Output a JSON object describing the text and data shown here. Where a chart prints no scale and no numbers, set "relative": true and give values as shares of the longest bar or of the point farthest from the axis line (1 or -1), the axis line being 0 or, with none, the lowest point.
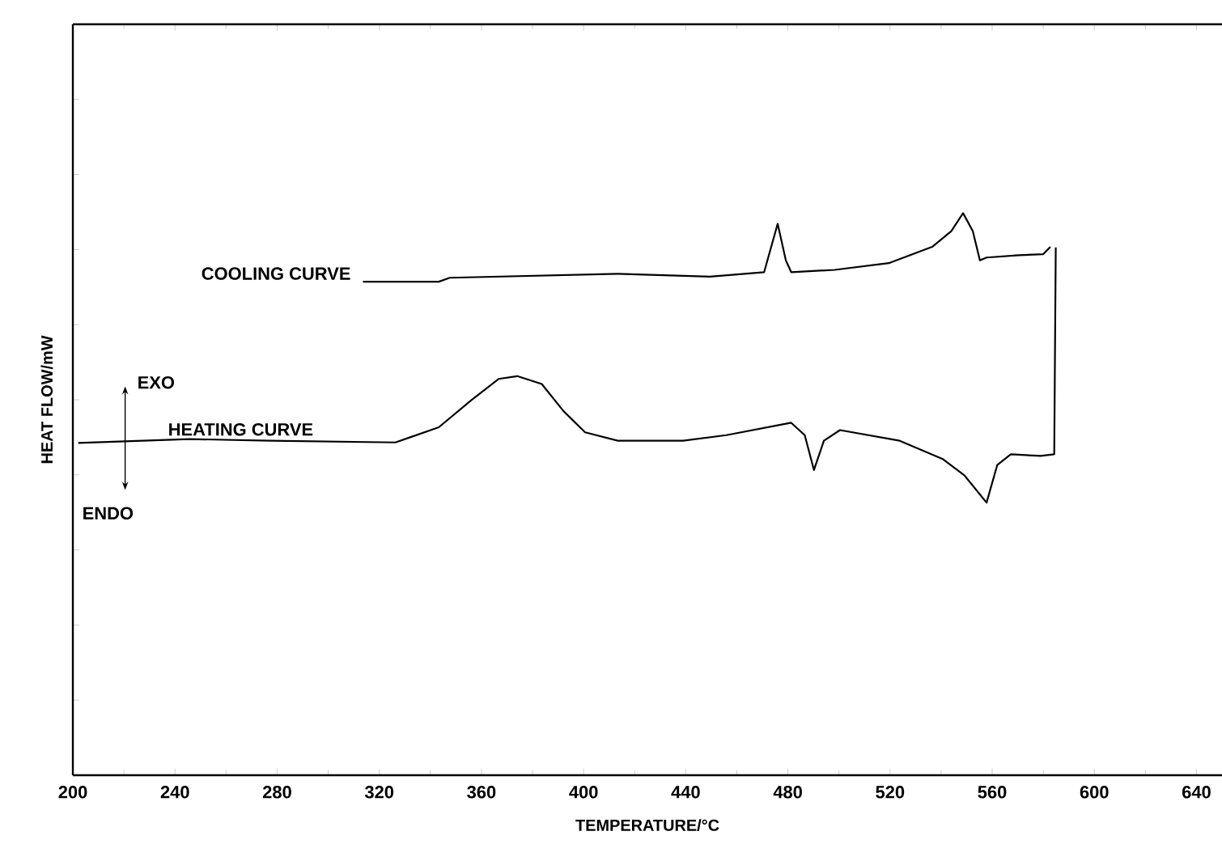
{
  "chart_data": {
    "type": "line",
    "relative": true,
    "xlabel": "TEMPERATURE/°C",
    "ylabel": "HEAT FLOW/mW",
    "xlim": [
      200,
      650
    ],
    "xticks": [
      200,
      240,
      280,
      320,
      360,
      400,
      440,
      480,
      520,
      560,
      600,
      640
    ],
    "tick_labels": "x",
    "grid": false,
    "legend": false,
    "marker": "none",
    "line_style": "solid",
    "annotations": [
      "EXO",
      "ENDO"
    ],
    "series": [
      {
        "name": "COOLING CURVE",
        "color": "#000000",
        "x": [
          313.6,
          343.3,
          347.6,
          413.4,
          449.5,
          470.7,
          476,
          479.2,
          481.3,
          498.3,
          519.5,
          536.5,
          544,
          548.6,
          552.4,
          555.2,
          557.8,
          570.5,
          580,
          582.8
        ],
        "values": [
          0.878,
          0.878,
          0.885,
          0.892,
          0.887,
          0.895,
          0.981,
          0.916,
          0.895,
          0.899,
          0.911,
          0.94,
          0.968,
          1,
          0.968,
          0.916,
          0.921,
          0.925,
          0.927,
          0.94
        ]
      },
      {
        "name": "HEATING CURVE",
        "color": "#000000",
        "x": [
          202.1,
          245.6,
          277.5,
          326.3,
          343.3,
          356,
          366.7,
          374,
          383.6,
          392.1,
          400.6,
          413.4,
          438.9,
          455.9,
          481.3,
          486.6,
          490.2,
          494.1,
          500.4,
          523.8,
          540.8,
          549.2,
          557.8,
          562,
          567.3,
          579,
          584.3,
          584.9
        ],
        "values": [
          0.591,
          0.598,
          0.595,
          0.592,
          0.619,
          0.667,
          0.705,
          0.71,
          0.696,
          0.648,
          0.61,
          0.595,
          0.595,
          0.605,
          0.627,
          0.605,
          0.543,
          0.595,
          0.614,
          0.595,
          0.562,
          0.533,
          0.485,
          0.552,
          0.571,
          0.568,
          0.571,
          0.939
        ]
      }
    ]
  }
}
